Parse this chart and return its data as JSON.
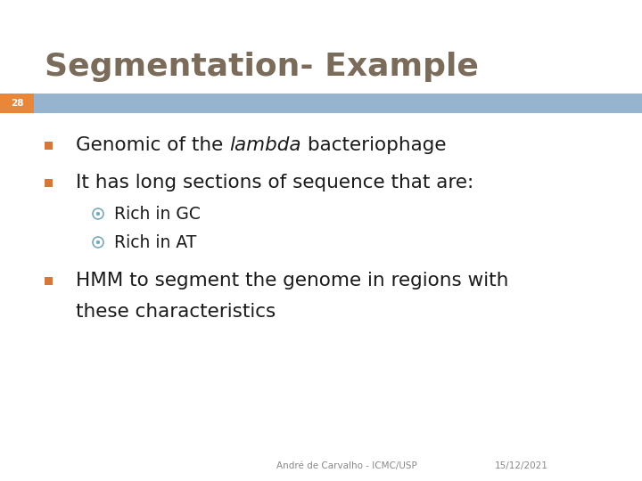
{
  "title": "Segmentation- Example",
  "title_color": "#7B6B5A",
  "background_color": "#FFFFFF",
  "slide_number": "28",
  "slide_number_bg": "#E8873A",
  "header_bar_color": "#96B4CE",
  "bullet1_normal": "Genomic of the ",
  "bullet1_italic": "lambda",
  "bullet1_normal2": " bacteriophage",
  "bullet2": "It has long sections of sequence that are:",
  "sub1": "Rich in GC",
  "sub2": "Rich in AT",
  "bullet3_line1": "HMM to segment the genome in regions with",
  "bullet3_line2": "these characteristics",
  "footer_left": "André de Carvalho - ICMC/USP",
  "footer_right": "15/12/2021",
  "text_color": "#1A1A1A",
  "footer_color": "#888888",
  "bullet_square_color": "#D4783A",
  "sub_bullet_color": "#7AAABB"
}
